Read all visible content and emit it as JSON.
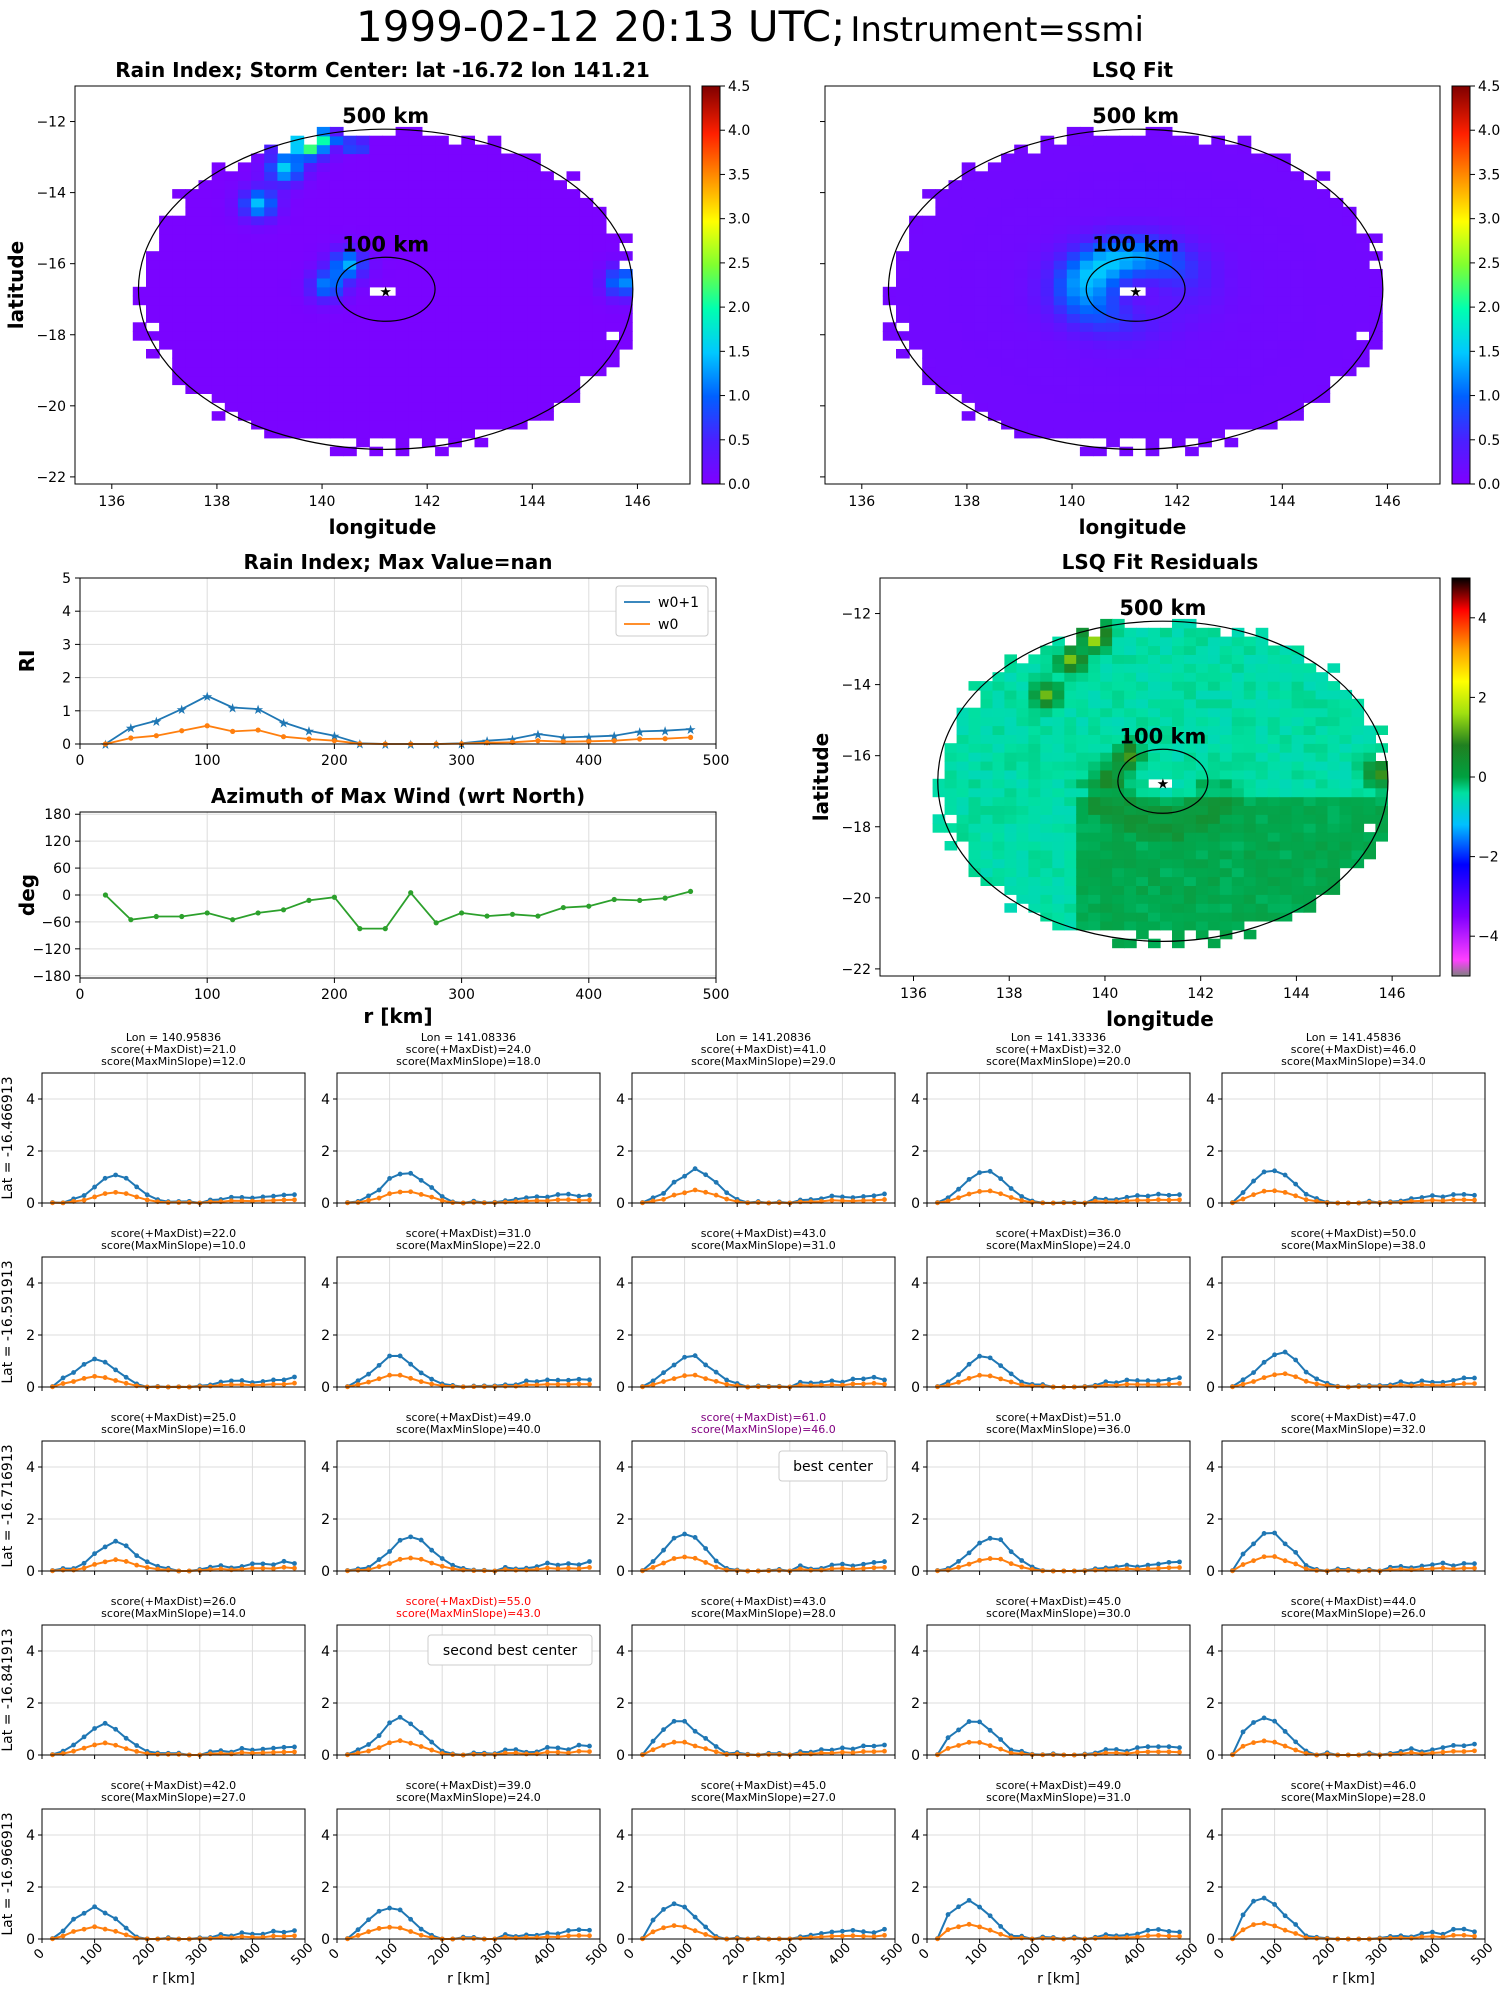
{
  "header": {
    "timestamp": "1999-02-12 20:13 UTC;",
    "instrument": "Instrument=ssmi"
  },
  "chart_data": [
    {
      "id": "rain-index-map",
      "type": "heatmap",
      "title": "Rain Index; Storm Center: lat -16.72 lon 141.21",
      "xlabel": "longitude",
      "ylabel": "latitude",
      "xlim": [
        135.3,
        147.0
      ],
      "ylim": [
        -22.2,
        -11.0
      ],
      "xticks": [
        136,
        138,
        140,
        142,
        144,
        146
      ],
      "yticks": [
        -22,
        -20,
        -18,
        -16,
        -14,
        -12
      ],
      "colorbar": {
        "min": 0.0,
        "max": 4.5,
        "ticks": [
          "0.0",
          "0.5",
          "1.0",
          "1.5",
          "2.0",
          "2.5",
          "3.0",
          "3.5",
          "4.0",
          "4.5"
        ],
        "colormap": "gist_rainbow"
      },
      "center": {
        "lat": -16.72,
        "lon": 141.21
      },
      "rings": [
        {
          "label": "500 km",
          "radius_km": 500
        },
        {
          "label": "100 km",
          "radius_km": 100
        }
      ],
      "hotspots": [
        {
          "lon": 139.8,
          "lat": -12.6,
          "value": 2.0
        },
        {
          "lon": 139.3,
          "lat": -13.3,
          "value": 1.5
        },
        {
          "lon": 138.8,
          "lat": -14.3,
          "value": 1.4
        },
        {
          "lon": 140.5,
          "lat": -16.0,
          "value": 1.3
        },
        {
          "lon": 140.1,
          "lat": -16.6,
          "value": 1.1
        },
        {
          "lon": 145.7,
          "lat": -16.5,
          "value": 1.2
        }
      ],
      "background_value": 0.05
    },
    {
      "id": "lsq-fit-map",
      "type": "heatmap",
      "title": "LSQ Fit",
      "xlabel": "longitude",
      "ylabel": "",
      "xlim": [
        135.3,
        147.0
      ],
      "ylim": [
        -22.2,
        -11.0
      ],
      "xticks": [
        136,
        138,
        140,
        142,
        144,
        146
      ],
      "colorbar": {
        "min": 0.0,
        "max": 4.5,
        "ticks": [
          "0.0",
          "0.5",
          "1.0",
          "1.5",
          "2.0",
          "2.5",
          "3.0",
          "3.5",
          "4.0",
          "4.5"
        ],
        "colormap": "gist_rainbow"
      },
      "rings": [
        {
          "label": "500 km",
          "radius_km": 500
        },
        {
          "label": "100 km",
          "radius_km": 100
        }
      ],
      "peak_value": 1.35,
      "peak_radius_km": 100
    },
    {
      "id": "rain-index-profile",
      "type": "line",
      "title": "Rain Index; Max Value=nan",
      "xlabel": "",
      "ylabel": "RI",
      "xlim": [
        0,
        500
      ],
      "ylim": [
        0,
        5
      ],
      "xticks": [
        0,
        100,
        200,
        300,
        400,
        500
      ],
      "yticks": [
        0,
        1,
        2,
        3,
        4,
        5
      ],
      "legend": "top-right",
      "x": [
        20,
        40,
        60,
        80,
        100,
        120,
        140,
        160,
        180,
        200,
        220,
        240,
        260,
        280,
        300,
        320,
        340,
        360,
        380,
        400,
        420,
        440,
        460,
        480
      ],
      "series": [
        {
          "name": "w0+1",
          "color": "#1f77b4",
          "marker": "star",
          "values": [
            0.0,
            0.5,
            0.7,
            1.05,
            1.45,
            1.1,
            1.05,
            0.65,
            0.4,
            0.25,
            0.02,
            0.0,
            0.0,
            0.0,
            0.02,
            0.1,
            0.15,
            0.3,
            0.2,
            0.22,
            0.25,
            0.38,
            0.4,
            0.45
          ]
        },
        {
          "name": "w0",
          "color": "#ff7f0e",
          "marker": "dot",
          "values": [
            0.0,
            0.18,
            0.25,
            0.4,
            0.55,
            0.38,
            0.42,
            0.22,
            0.15,
            0.1,
            0.01,
            0.0,
            0.0,
            0.0,
            0.01,
            0.04,
            0.05,
            0.1,
            0.07,
            0.08,
            0.1,
            0.15,
            0.16,
            0.2
          ]
        }
      ]
    },
    {
      "id": "azimuth-profile",
      "type": "line",
      "title": "Azimuth of Max Wind (wrt North)",
      "xlabel": "r [km]",
      "ylabel": "deg",
      "xlim": [
        0,
        500
      ],
      "ylim": [
        -185,
        185
      ],
      "xticks": [
        0,
        100,
        200,
        300,
        400,
        500
      ],
      "yticks": [
        180,
        120,
        60,
        0,
        -60,
        -120,
        -180
      ],
      "x": [
        20,
        40,
        60,
        80,
        100,
        120,
        140,
        160,
        180,
        200,
        220,
        240,
        260,
        280,
        300,
        320,
        340,
        360,
        380,
        400,
        420,
        440,
        460,
        480
      ],
      "series": [
        {
          "color": "#2ca02c",
          "values": [
            0,
            -55,
            -48,
            -48,
            -40,
            -55,
            -40,
            -33,
            -12,
            -5,
            -75,
            -75,
            5,
            -62,
            -40,
            -47,
            -43,
            -47,
            -28,
            -25,
            -10,
            -12,
            -7,
            8
          ]
        }
      ]
    },
    {
      "id": "lsq-residuals-map",
      "type": "heatmap",
      "title": "LSQ Fit Residuals",
      "xlabel": "longitude",
      "ylabel": "latitude",
      "xlim": [
        135.3,
        147.0
      ],
      "ylim": [
        -22.2,
        -11.0
      ],
      "xticks": [
        136,
        138,
        140,
        142,
        144,
        146
      ],
      "yticks": [
        -22,
        -20,
        -18,
        -16,
        -14,
        -12
      ],
      "colorbar": {
        "min": -5,
        "max": 5,
        "ticks": [
          "4",
          "2",
          "0",
          "−2",
          "−4"
        ],
        "colormap": "gist_ncar"
      },
      "rings": [
        {
          "label": "500 km",
          "radius_km": 500
        },
        {
          "label": "100 km",
          "radius_km": 100
        }
      ]
    }
  ],
  "grid": {
    "lons": [
      "Lon = 140.95836",
      "Lon = 141.08336",
      "Lon = 141.20836",
      "Lon = 141.33336",
      "Lon = 141.45836"
    ],
    "lat_labels": [
      "Lat = -16.466913",
      "Lat = -16.591913",
      "Lat = -16.716913",
      "Lat = -16.841913",
      "Lat = -16.966913"
    ],
    "xlabel": "r [km]",
    "xticks": [
      0,
      100,
      200,
      300,
      400,
      500
    ],
    "yticks": [
      0,
      2,
      4
    ],
    "ylim": [
      0,
      5
    ],
    "x": [
      20,
      40,
      60,
      80,
      100,
      120,
      140,
      160,
      180,
      200,
      220,
      240,
      260,
      280,
      300,
      320,
      340,
      360,
      380,
      400,
      420,
      440,
      460,
      480
    ],
    "panels": [
      [
        {
          "s1": "score(+MaxDist)=21.0",
          "s2": "score(MaxMinSlope)=12.0",
          "peak": 1.05,
          "pos": 140
        },
        {
          "s1": "score(+MaxDist)=24.0",
          "s2": "score(MaxMinSlope)=18.0",
          "peak": 1.2,
          "pos": 130
        },
        {
          "s1": "score(+MaxDist)=41.0",
          "s2": "score(MaxMinSlope)=29.0",
          "peak": 1.25,
          "pos": 120
        },
        {
          "s1": "score(+MaxDist)=32.0",
          "s2": "score(MaxMinSlope)=20.0",
          "peak": 1.2,
          "pos": 110
        },
        {
          "s1": "score(+MaxDist)=46.0",
          "s2": "score(MaxMinSlope)=34.0",
          "peak": 1.3,
          "pos": 100
        }
      ],
      [
        {
          "s1": "score(+MaxDist)=22.0",
          "s2": "score(MaxMinSlope)=10.0",
          "peak": 1.05,
          "pos": 100
        },
        {
          "s1": "score(+MaxDist)=31.0",
          "s2": "score(MaxMinSlope)=22.0",
          "peak": 1.2,
          "pos": 110
        },
        {
          "s1": "score(+MaxDist)=43.0",
          "s2": "score(MaxMinSlope)=31.0",
          "peak": 1.2,
          "pos": 110
        },
        {
          "s1": "score(+MaxDist)=36.0",
          "s2": "score(MaxMinSlope)=24.0",
          "peak": 1.2,
          "pos": 110
        },
        {
          "s1": "score(+MaxDist)=50.0",
          "s2": "score(MaxMinSlope)=38.0",
          "peak": 1.35,
          "pos": 110
        }
      ],
      [
        {
          "s1": "score(+MaxDist)=25.0",
          "s2": "score(MaxMinSlope)=16.0",
          "peak": 1.1,
          "pos": 140
        },
        {
          "s1": "score(+MaxDist)=49.0",
          "s2": "score(MaxMinSlope)=40.0",
          "peak": 1.35,
          "pos": 140
        },
        {
          "s1": "score(+MaxDist)=61.0",
          "s2": "score(MaxMinSlope)=46.0",
          "peak": 1.4,
          "pos": 100,
          "color": "#800080",
          "annotation": "best center"
        },
        {
          "s1": "score(+MaxDist)=51.0",
          "s2": "score(MaxMinSlope)=36.0",
          "peak": 1.3,
          "pos": 120
        },
        {
          "s1": "score(+MaxDist)=47.0",
          "s2": "score(MaxMinSlope)=32.0",
          "peak": 1.5,
          "pos": 90
        }
      ],
      [
        {
          "s1": "score(+MaxDist)=26.0",
          "s2": "score(MaxMinSlope)=14.0",
          "peak": 1.15,
          "pos": 120
        },
        {
          "s1": "score(+MaxDist)=55.0",
          "s2": "score(MaxMinSlope)=43.0",
          "peak": 1.4,
          "pos": 120,
          "color": "#ff0000",
          "annotation": "second best center"
        },
        {
          "s1": "score(+MaxDist)=43.0",
          "s2": "score(MaxMinSlope)=28.0",
          "peak": 1.3,
          "pos": 90
        },
        {
          "s1": "score(+MaxDist)=45.0",
          "s2": "score(MaxMinSlope)=30.0",
          "peak": 1.35,
          "pos": 90
        },
        {
          "s1": "score(+MaxDist)=44.0",
          "s2": "score(MaxMinSlope)=26.0",
          "peak": 1.45,
          "pos": 80
        }
      ],
      [
        {
          "s1": "score(+MaxDist)=42.0",
          "s2": "score(MaxMinSlope)=27.0",
          "peak": 1.2,
          "pos": 100
        },
        {
          "s1": "score(+MaxDist)=39.0",
          "s2": "score(MaxMinSlope)=24.0",
          "peak": 1.2,
          "pos": 100
        },
        {
          "s1": "score(+MaxDist)=45.0",
          "s2": "score(MaxMinSlope)=27.0",
          "peak": 1.35,
          "pos": 80
        },
        {
          "s1": "score(+MaxDist)=49.0",
          "s2": "score(MaxMinSlope)=31.0",
          "peak": 1.45,
          "pos": 80
        },
        {
          "s1": "score(+MaxDist)=46.0",
          "s2": "score(MaxMinSlope)=28.0",
          "peak": 1.6,
          "pos": 80
        }
      ]
    ]
  }
}
